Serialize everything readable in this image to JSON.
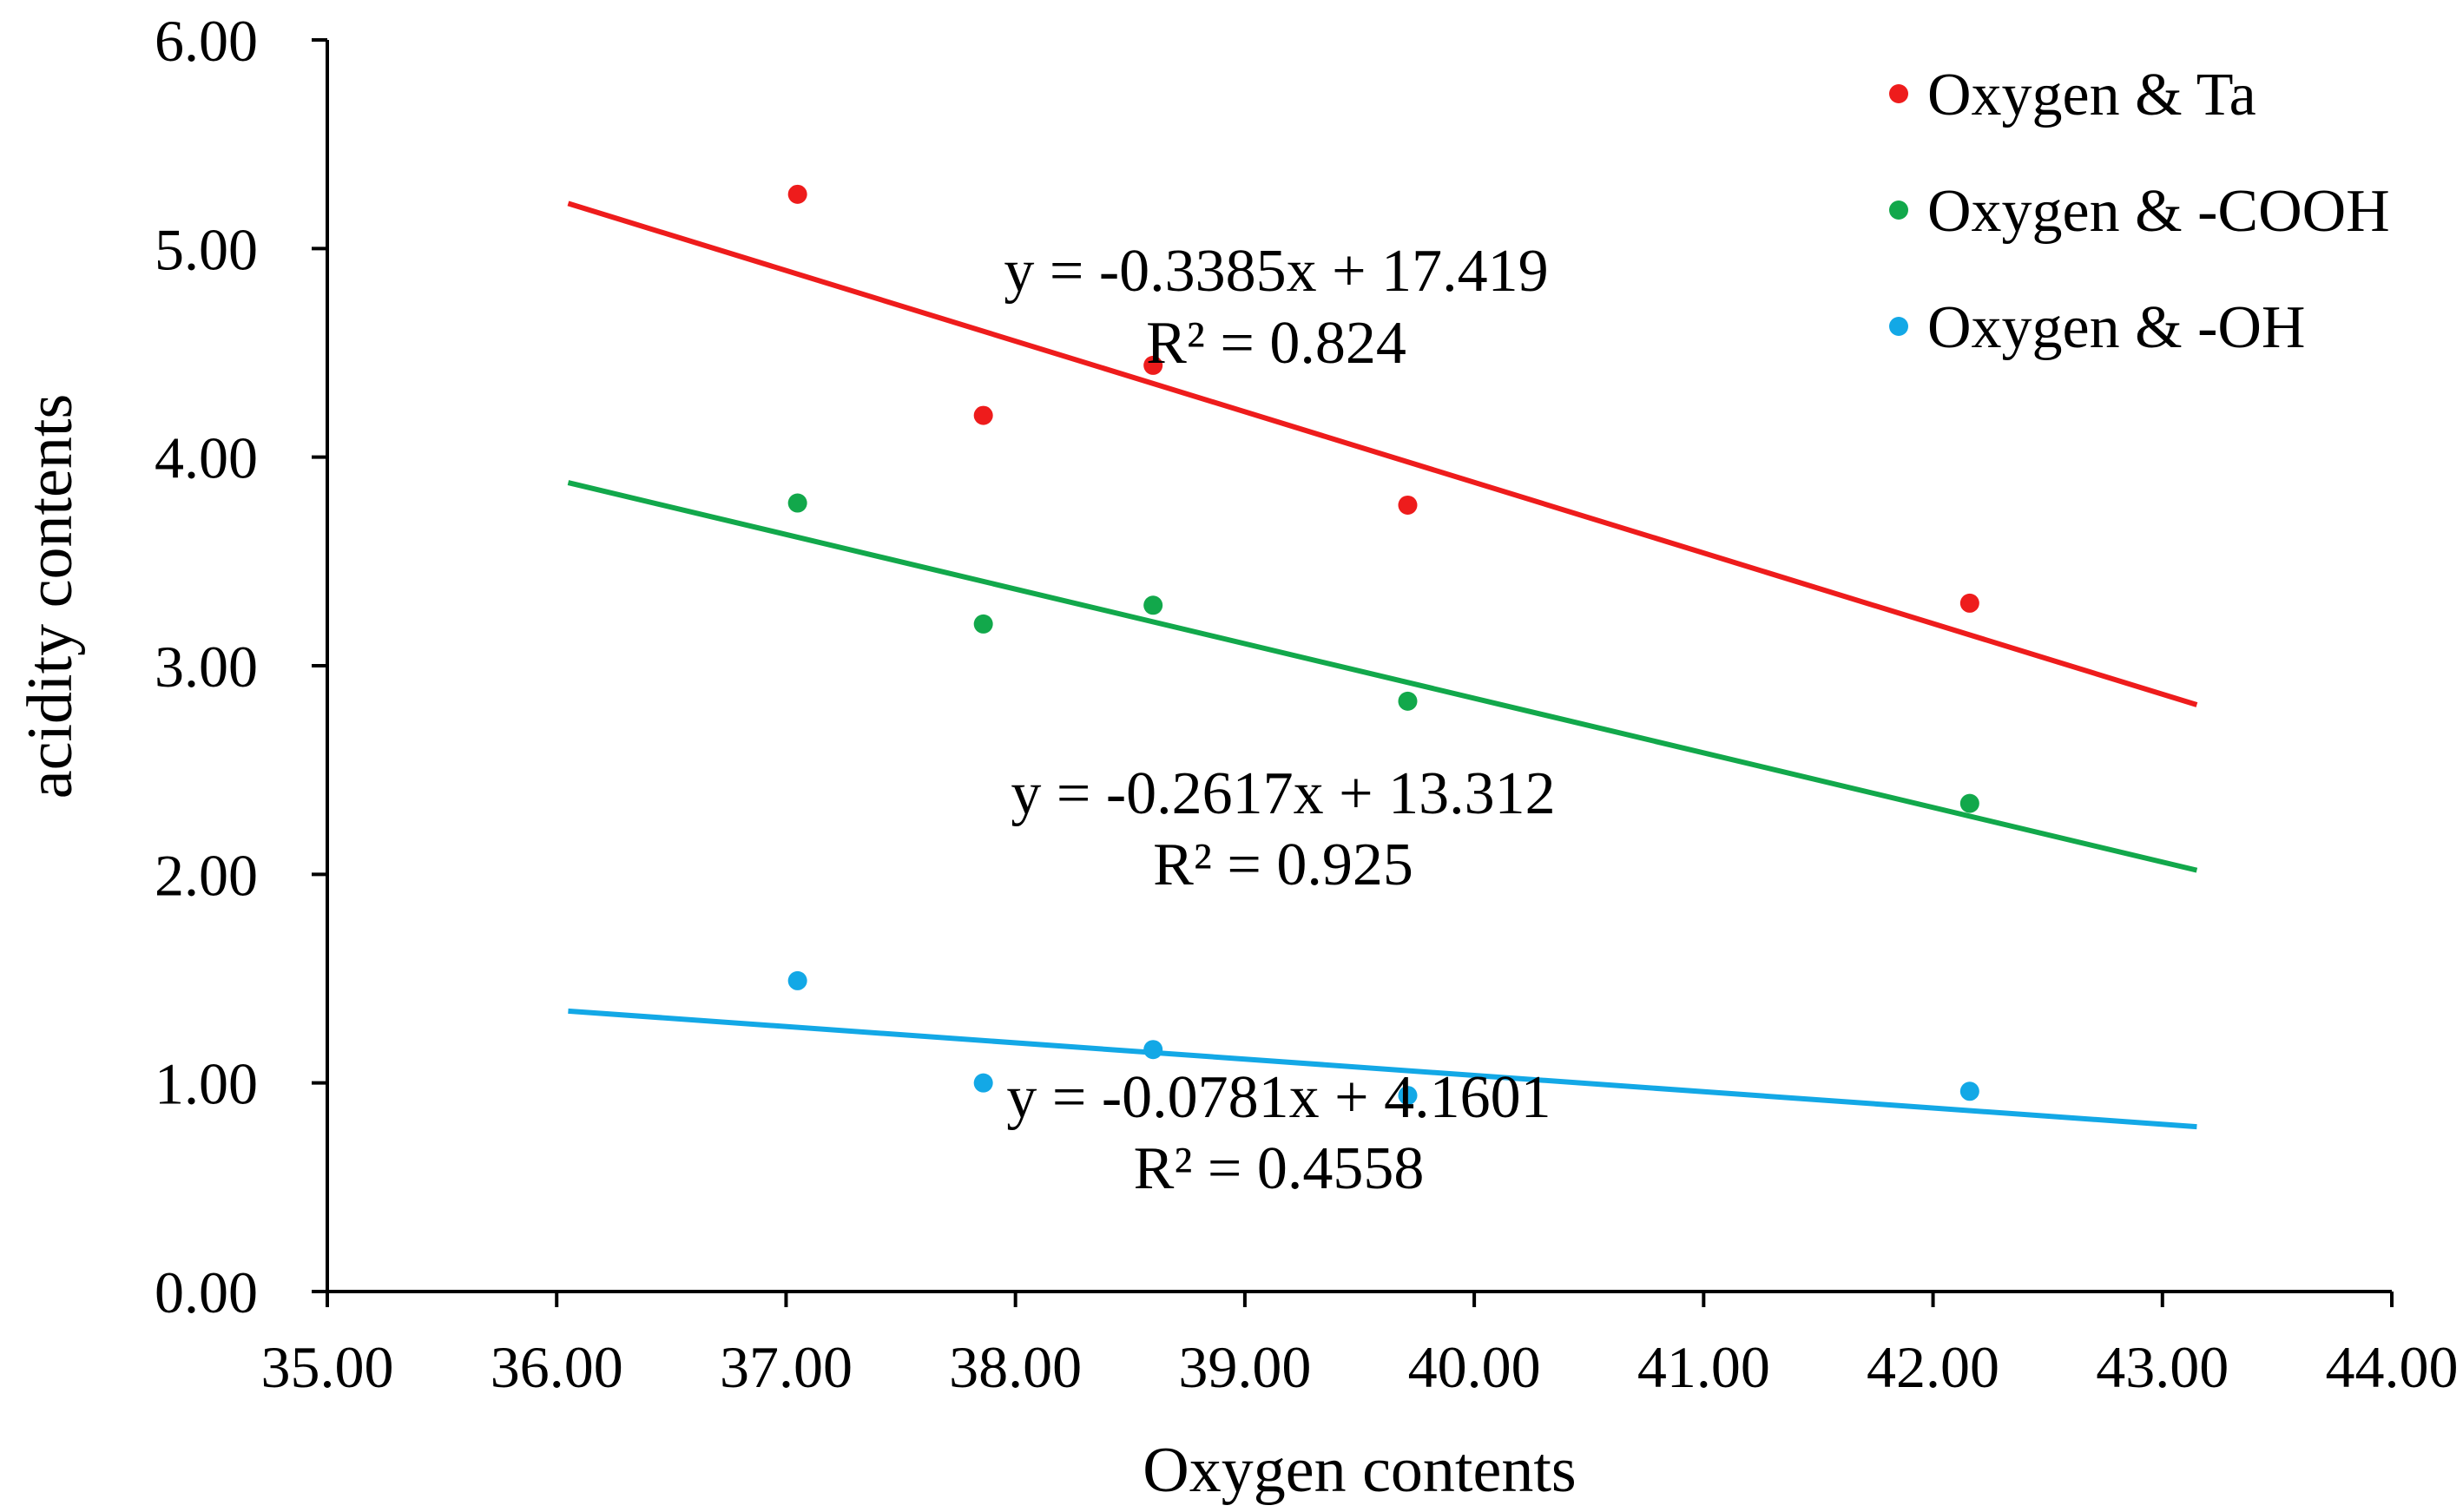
{
  "chart_data": {
    "type": "scatter",
    "title": "",
    "xlabel": "Oxygen contents",
    "ylabel": "acidity contents",
    "xlim": [
      35,
      44
    ],
    "ylim": [
      0,
      6
    ],
    "x_ticks": [
      "35.00",
      "36.00",
      "37.00",
      "38.00",
      "39.00",
      "40.00",
      "41.00",
      "42.00",
      "43.00",
      "44.00"
    ],
    "x_tick_values": [
      35,
      36,
      37,
      38,
      39,
      40,
      41,
      42,
      43,
      44
    ],
    "y_ticks": [
      "0.00",
      "1.00",
      "2.00",
      "3.00",
      "4.00",
      "5.00",
      "6.00"
    ],
    "y_tick_values": [
      0,
      1,
      2,
      3,
      4,
      5,
      6
    ],
    "grid": false,
    "legend_position": "top-right",
    "trendline_x_range": [
      36.05,
      43.15
    ],
    "series": [
      {
        "name": "Oxygen & Ta",
        "color": "#ee1c1c",
        "x": [
          37.05,
          37.86,
          38.6,
          39.71,
          42.16
        ],
        "y": [
          5.26,
          4.2,
          4.44,
          3.77,
          3.3
        ],
        "trendline": {
          "slope": -0.3385,
          "intercept": 17.419
        },
        "equation": "y = -0.3385x + 17.419",
        "r2": "R² = 0.824"
      },
      {
        "name": "Oxygen & -COOH",
        "color": "#12a84b",
        "x": [
          37.05,
          37.86,
          38.6,
          39.71,
          42.16
        ],
        "y": [
          3.78,
          3.2,
          3.29,
          2.83,
          2.34
        ],
        "trendline": {
          "slope": -0.2617,
          "intercept": 13.312
        },
        "equation": "y = -0.2617x + 13.312",
        "r2": "R² = 0.925"
      },
      {
        "name": "Oxygen & -OH",
        "color": "#13a8e6",
        "x": [
          37.05,
          37.86,
          38.6,
          39.71,
          42.16
        ],
        "y": [
          1.49,
          1.0,
          1.16,
          0.94,
          0.96
        ],
        "trendline": {
          "slope": -0.0781,
          "intercept": 4.1601
        },
        "equation": "y = -0.0781x + 4.1601",
        "r2": "R² = 0.4558"
      }
    ]
  }
}
